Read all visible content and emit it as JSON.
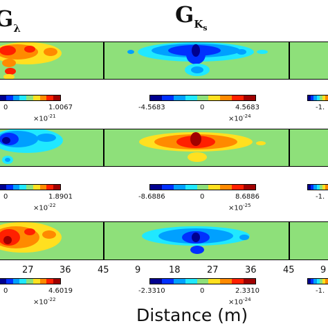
{
  "titles": {
    "left": {
      "main": "G",
      "sub": "λ"
    },
    "middle": {
      "main": "G",
      "sub": "K",
      "subsub": "s"
    }
  },
  "colormap": [
    "#00008f",
    "#0030ff",
    "#00a0ff",
    "#20e8ff",
    "#8ee07a",
    "#ffe020",
    "#ff8a00",
    "#ff2000",
    "#a00000"
  ],
  "chart_data": {
    "type": "heatmap",
    "xlabel": "Distance (m)",
    "x_ticks_left": [
      "27",
      "36",
      "45"
    ],
    "x_ticks_middle": [
      "9",
      "18",
      "27",
      "36",
      "45"
    ],
    "x_ticks_right": [
      "9"
    ],
    "rows": [
      {
        "left": {
          "ticks": [
            "0",
            "1.0067"
          ],
          "exponent_base": "×10",
          "exponent": "-21"
        },
        "middle": {
          "ticks": [
            "-4.5683",
            "0",
            "4.5683"
          ],
          "exponent_base": "×10",
          "exponent": "-24"
        },
        "right": {
          "ticks": [
            "-1."
          ]
        }
      },
      {
        "left": {
          "ticks": [
            "0",
            "1.8901"
          ],
          "exponent_base": "×10",
          "exponent": "-22"
        },
        "middle": {
          "ticks": [
            "-8.6886",
            "0",
            "8.6886"
          ],
          "exponent_base": "×10",
          "exponent": "-25"
        },
        "right": {
          "ticks": [
            "-1."
          ]
        }
      },
      {
        "left": {
          "ticks": [
            "0",
            "4.6019"
          ],
          "exponent_base": "×10",
          "exponent": "-22"
        },
        "middle": {
          "ticks": [
            "-2.3310",
            "0",
            "2.3310"
          ],
          "exponent_base": "×10",
          "exponent": "-24"
        },
        "right": {
          "ticks": [
            "-1."
          ]
        }
      }
    ]
  }
}
